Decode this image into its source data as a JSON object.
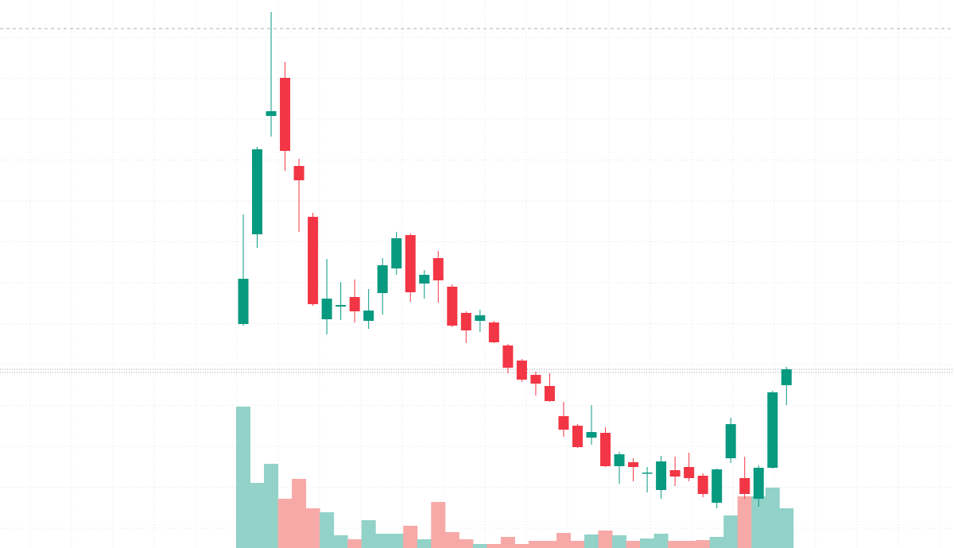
{
  "chart_data": {
    "type": "candlestick",
    "up_color": "#089981",
    "down_color": "#f23645",
    "volume_up_color": "#92d2c8",
    "volume_down_color": "#f7a9a7",
    "ylim": [
      0,
      690
    ],
    "volume_ylim": [
      0,
      690
    ],
    "open": [
      282,
      395,
      544,
      592,
      481,
      417,
      288,
      304,
      316,
      286,
      321,
      352,
      394,
      333,
      365,
      329,
      296,
      286,
      284,
      255,
      236,
      218,
      204,
      166,
      154,
      139,
      145,
      103,
      108,
      94,
      73,
      98,
      102,
      91,
      57,
      113,
      88,
      62,
      101,
      205
    ],
    "high": [
      420,
      505,
      675,
      612,
      490,
      422,
      364,
      335,
      338,
      326,
      365,
      398,
      396,
      350,
      374,
      332,
      298,
      300,
      286,
      257,
      238,
      222,
      220,
      184,
      156,
      180,
      152,
      121,
      113,
      102,
      116,
      115,
      120,
      94,
      100,
      164,
      115,
      104,
      198,
      228
    ],
    "low": [
      280,
      378,
      518,
      475,
      398,
      305,
      269,
      287,
      284,
      276,
      294,
      344,
      310,
      314,
      309,
      278,
      258,
      272,
      258,
      220,
      209,
      192,
      184,
      140,
      126,
      130,
      102,
      81,
      84,
      70,
      62,
      78,
      84,
      64,
      50,
      107,
      62,
      52,
      100,
      180
    ],
    "close": [
      339,
      502,
      550,
      500,
      463,
      307,
      314,
      306,
      298,
      299,
      356,
      390,
      322,
      344,
      337,
      280,
      274,
      293,
      259,
      227,
      212,
      207,
      185,
      149,
      127,
      146,
      103,
      118,
      102,
      95,
      109,
      90,
      88,
      68,
      99,
      156,
      68,
      101,
      196,
      225
    ],
    "volume": [
      178,
      82,
      106,
      62,
      87,
      50,
      45,
      16,
      11,
      35,
      18,
      18,
      28,
      11,
      58,
      20,
      11,
      5,
      5,
      14,
      5,
      9,
      9,
      19,
      9,
      17,
      22,
      16,
      9,
      12,
      18,
      9,
      9,
      10,
      14,
      41,
      65,
      65,
      76,
      50
    ]
  }
}
